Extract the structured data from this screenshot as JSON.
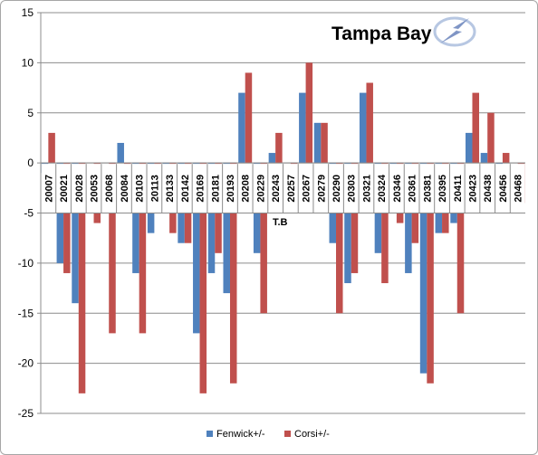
{
  "chart_data": {
    "type": "bar",
    "title": "Tampa Bay",
    "annotation": "T.B",
    "xlabel": "",
    "ylabel": "",
    "ylim": [
      -25,
      15
    ],
    "yticks": [
      15,
      10,
      5,
      0,
      -5,
      -10,
      -15,
      -20,
      -25
    ],
    "grid": true,
    "legend_position": "bottom",
    "logo_icon": "lightning-bolt-logo-icon",
    "categories": [
      "20007",
      "20021",
      "20028",
      "20053",
      "20068",
      "20084",
      "20103",
      "20113",
      "20133",
      "20142",
      "20169",
      "20181",
      "20193",
      "20208",
      "20229",
      "20243",
      "20257",
      "20267",
      "20279",
      "20290",
      "20303",
      "20321",
      "20324",
      "20346",
      "20361",
      "20381",
      "20395",
      "20411",
      "20423",
      "20438",
      "20456",
      "20468"
    ],
    "series": [
      {
        "name": "Fenwick+/-",
        "color": "#4f81bd",
        "values": [
          -1,
          -10,
          -14,
          0,
          0,
          2,
          -11,
          -7,
          -5,
          -8,
          -17,
          -11,
          -13,
          7,
          -9,
          1,
          0,
          7,
          4,
          -8,
          -12,
          7,
          -9,
          -5,
          -11,
          -21,
          -7,
          -6,
          3,
          1,
          -1,
          0
        ]
      },
      {
        "name": "Corsi+/-",
        "color": "#c0504d",
        "values": [
          3,
          -11,
          -23,
          -6,
          -17,
          -5,
          -17,
          -5,
          -7,
          -8,
          -23,
          -9,
          -22,
          9,
          -15,
          3,
          -5,
          10,
          4,
          -15,
          -11,
          8,
          -12,
          -6,
          -8,
          -22,
          -7,
          -15,
          7,
          5,
          1,
          -4
        ]
      }
    ]
  }
}
